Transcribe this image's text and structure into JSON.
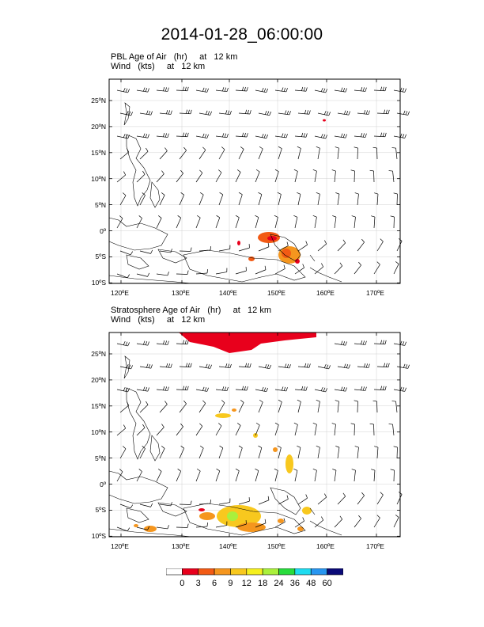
{
  "title": "2014-01-28_06:00:00",
  "panels": [
    {
      "title_line1": "PBL Age of Air   (hr)     at   12 km",
      "title_line2": "Wind   (kts)     at   12 km"
    },
    {
      "title_line1": "Stratosphere Age of Air   (hr)     at   12 km",
      "title_line2": "Wind   (kts)     at   12 km"
    }
  ],
  "lat_labels": [
    "25ºN",
    "20ºN",
    "15ºN",
    "10ºN",
    "5ºN",
    "0º",
    "5ºS",
    "10ºS"
  ],
  "lon_labels": [
    "120ºE",
    "130ºE",
    "140ºE",
    "150ºE",
    "160ºE",
    "170ºE"
  ],
  "colorbar": {
    "labels": [
      "0",
      "3",
      "6",
      "9",
      "12",
      "18",
      "24",
      "36",
      "48",
      "60"
    ],
    "colors": [
      "#ffffff",
      "#e8001c",
      "#f25a14",
      "#f5961e",
      "#f8c81e",
      "#f5f01e",
      "#aaf03c",
      "#28dc3c",
      "#1edcf0",
      "#2896f0",
      "#0a0a78"
    ]
  }
}
